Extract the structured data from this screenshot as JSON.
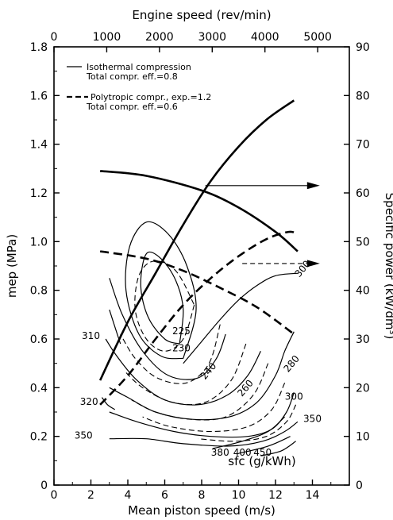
{
  "chart_data": {
    "type": "line",
    "top_axis": {
      "title": "Engine speed  (rev/min)",
      "range": [
        0,
        5600
      ],
      "ticks": [
        0,
        1000,
        2000,
        3000,
        4000,
        5000
      ],
      "tick_labels": [
        "0",
        "1000",
        "2000",
        "3000",
        "4000",
        "5000"
      ]
    },
    "x_axis": {
      "title": "Mean piston speed (m/s)",
      "range": [
        0,
        16
      ],
      "ticks": [
        0,
        2,
        4,
        6,
        8,
        10,
        12,
        14
      ],
      "tick_labels": [
        "0",
        "2",
        "4",
        "6",
        "8",
        "10",
        "12",
        "14"
      ]
    },
    "y_left": {
      "title": "mep (MPa)",
      "range": [
        0,
        1.8
      ],
      "ticks": [
        0,
        0.2,
        0.4,
        0.6,
        0.8,
        1.0,
        1.2,
        1.4,
        1.6,
        1.8
      ],
      "tick_labels": [
        "0",
        "0.2",
        "0.4",
        "0.6",
        "0.8",
        "1.0",
        "1.2",
        "1.4",
        "1.6",
        "1.8"
      ]
    },
    "y_right": {
      "title": "Specific power (kW/dm³)",
      "range": [
        0,
        90
      ],
      "ticks": [
        0,
        10,
        20,
        30,
        40,
        50,
        60,
        70,
        80,
        90
      ],
      "tick_labels": [
        "0",
        "10",
        "20",
        "30",
        "40",
        "50",
        "60",
        "70",
        "80",
        "90"
      ]
    },
    "legend": [
      {
        "style": "solid",
        "line1": "Isothermal compression",
        "line2": "Total compr. eff.=0.8"
      },
      {
        "style": "dashed",
        "line1": "Polytropic compr., exp.=1.2",
        "line2": "Total compr. eff.=0.6"
      }
    ],
    "sfc_label": "sfc  (g/kWh)",
    "series": [
      {
        "name": "Isothermal compression mep",
        "style": "solid-bold",
        "points": [
          [
            2.5,
            1.29
          ],
          [
            5,
            1.27
          ],
          [
            8,
            1.21
          ],
          [
            10,
            1.14
          ],
          [
            12,
            1.04
          ],
          [
            13.2,
            0.96
          ]
        ]
      },
      {
        "name": "Isothermal compression specific power",
        "style": "solid-bold",
        "points": [
          [
            2.5,
            0.43
          ],
          [
            4,
            0.67
          ],
          [
            5.5,
            0.87
          ],
          [
            7,
            1.07
          ],
          [
            8.5,
            1.25
          ],
          [
            10,
            1.39
          ],
          [
            11.5,
            1.5
          ],
          [
            13,
            1.58
          ]
        ]
      },
      {
        "name": "Polytropic compr. mep",
        "style": "dashed-bold",
        "points": [
          [
            2.5,
            0.96
          ],
          [
            5,
            0.93
          ],
          [
            7,
            0.88
          ],
          [
            9,
            0.81
          ],
          [
            11,
            0.73
          ],
          [
            13,
            0.62
          ]
        ]
      },
      {
        "name": "Polytropic compr. specific power",
        "style": "dashed-bold",
        "points": [
          [
            2.5,
            0.33
          ],
          [
            4,
            0.45
          ],
          [
            5.5,
            0.6
          ],
          [
            7,
            0.74
          ],
          [
            8.5,
            0.85
          ],
          [
            10,
            0.94
          ],
          [
            11.5,
            1.01
          ],
          [
            12.7,
            1.04
          ],
          [
            13.2,
            1.03
          ]
        ]
      }
    ],
    "sfc_contours": [
      {
        "value": "225",
        "style": "solid",
        "points": [
          [
            6.8,
            0.58
          ],
          [
            6.0,
            0.6
          ],
          [
            5.1,
            0.69
          ],
          [
            4.7,
            0.82
          ],
          [
            5.0,
            0.95
          ],
          [
            5.8,
            0.93
          ],
          [
            6.6,
            0.84
          ],
          [
            7.0,
            0.72
          ],
          [
            6.8,
            0.58
          ]
        ]
      },
      {
        "value": "230",
        "style": "solid",
        "points": [
          [
            7.0,
            0.52
          ],
          [
            5.8,
            0.53
          ],
          [
            4.6,
            0.62
          ],
          [
            3.9,
            0.8
          ],
          [
            4.1,
            0.98
          ],
          [
            5.0,
            1.08
          ],
          [
            6.2,
            1.03
          ],
          [
            7.2,
            0.9
          ],
          [
            7.7,
            0.72
          ],
          [
            7.0,
            0.52
          ]
        ]
      },
      {
        "value": "240",
        "style": "solid",
        "points": [
          [
            9.3,
            0.62
          ],
          [
            8.8,
            0.52
          ],
          [
            7.8,
            0.44
          ],
          [
            6.2,
            0.45
          ],
          [
            4.8,
            0.55
          ],
          [
            3.7,
            0.7
          ],
          [
            3.0,
            0.85
          ]
        ]
      },
      {
        "value": "260",
        "style": "solid",
        "points": [
          [
            11.2,
            0.55
          ],
          [
            10.5,
            0.45
          ],
          [
            9.4,
            0.37
          ],
          [
            7.8,
            0.33
          ],
          [
            6.0,
            0.35
          ],
          [
            4.5,
            0.43
          ],
          [
            3.4,
            0.53
          ],
          [
            2.8,
            0.6
          ]
        ]
      },
      {
        "value": "280",
        "style": "solid",
        "points": [
          [
            13.0,
            0.63
          ],
          [
            12.5,
            0.55
          ],
          [
            12.0,
            0.45
          ],
          [
            11.0,
            0.34
          ],
          [
            9.5,
            0.28
          ],
          [
            7.5,
            0.27
          ],
          [
            5.5,
            0.3
          ],
          [
            4.0,
            0.36
          ],
          [
            3.0,
            0.4
          ]
        ]
      },
      {
        "value": "300",
        "style": "solid",
        "points": [
          [
            13.0,
            0.38
          ],
          [
            12.6,
            0.3
          ],
          [
            11.8,
            0.23
          ],
          [
            10.5,
            0.2
          ],
          [
            8.5,
            0.2
          ],
          [
            6.5,
            0.22
          ],
          [
            4.5,
            0.26
          ],
          [
            3.0,
            0.3
          ]
        ]
      },
      {
        "value": "310",
        "style": "solid",
        "points": [
          [
            3.0,
            0.72
          ],
          [
            3.3,
            0.65
          ],
          [
            3.6,
            0.58
          ]
        ]
      },
      {
        "value": "320",
        "style": "solid",
        "points": [
          [
            2.6,
            0.36
          ],
          [
            2.9,
            0.33
          ],
          [
            3.3,
            0.31
          ]
        ]
      },
      {
        "value": "350",
        "style": "solid",
        "points": [
          [
            13.2,
            0.26
          ],
          [
            12.5,
            0.22
          ],
          [
            11.3,
            0.18
          ],
          [
            9.5,
            0.16
          ],
          [
            7.0,
            0.17
          ],
          [
            5.0,
            0.19
          ],
          [
            3.0,
            0.19
          ]
        ]
      },
      {
        "value": "380",
        "style": "solid",
        "points": [
          [
            12.5,
            0.28
          ],
          [
            11.6,
            0.22
          ],
          [
            10.2,
            0.18
          ],
          [
            8.6,
            0.15
          ]
        ]
      },
      {
        "value": "400",
        "style": "solid",
        "points": [
          [
            12.8,
            0.2
          ],
          [
            11.6,
            0.16
          ],
          [
            10.0,
            0.13
          ]
        ]
      },
      {
        "value": "450",
        "style": "solid",
        "points": [
          [
            13.1,
            0.18
          ],
          [
            12.3,
            0.14
          ],
          [
            11.2,
            0.12
          ]
        ]
      },
      {
        "value": "300",
        "style": "solid",
        "points": [
          [
            13.2,
            0.87
          ],
          [
            12.0,
            0.86
          ],
          [
            11.0,
            0.82
          ],
          [
            10.0,
            0.76
          ],
          [
            9.0,
            0.68
          ],
          [
            8.0,
            0.59
          ],
          [
            7.0,
            0.5
          ]
        ]
      }
    ],
    "dashed_contours": [
      {
        "points": [
          [
            7.6,
            0.74
          ],
          [
            7.0,
            0.6
          ],
          [
            6.0,
            0.55
          ],
          [
            5.0,
            0.6
          ],
          [
            4.4,
            0.72
          ],
          [
            4.6,
            0.86
          ],
          [
            5.4,
            0.92
          ],
          [
            6.6,
            0.88
          ],
          [
            7.6,
            0.74
          ]
        ]
      },
      {
        "points": [
          [
            9.0,
            0.66
          ],
          [
            8.4,
            0.5
          ],
          [
            7.2,
            0.42
          ],
          [
            5.6,
            0.44
          ],
          [
            4.4,
            0.52
          ],
          [
            3.6,
            0.62
          ]
        ]
      },
      {
        "points": [
          [
            10.4,
            0.58
          ],
          [
            9.6,
            0.43
          ],
          [
            8.2,
            0.34
          ],
          [
            6.4,
            0.34
          ],
          [
            4.8,
            0.4
          ],
          [
            3.8,
            0.47
          ]
        ]
      },
      {
        "points": [
          [
            11.6,
            0.5
          ],
          [
            10.8,
            0.37
          ],
          [
            9.3,
            0.28
          ],
          [
            7.4,
            0.27
          ],
          [
            5.5,
            0.3
          ],
          [
            4.2,
            0.35
          ]
        ]
      },
      {
        "points": [
          [
            12.5,
            0.42
          ],
          [
            11.8,
            0.31
          ],
          [
            10.5,
            0.24
          ],
          [
            8.5,
            0.22
          ],
          [
            6.3,
            0.24
          ],
          [
            4.8,
            0.28
          ]
        ]
      },
      {
        "points": [
          [
            13.1,
            0.33
          ],
          [
            12.6,
            0.26
          ],
          [
            11.5,
            0.2
          ],
          [
            9.8,
            0.18
          ],
          [
            7.8,
            0.19
          ]
        ]
      }
    ],
    "arrows": [
      {
        "style": "solid",
        "from": [
          8.2,
          1.23
        ],
        "to": [
          14.4,
          1.23
        ]
      },
      {
        "style": "dashed",
        "from": [
          10.2,
          0.91
        ],
        "to": [
          14.4,
          0.91
        ]
      }
    ]
  }
}
